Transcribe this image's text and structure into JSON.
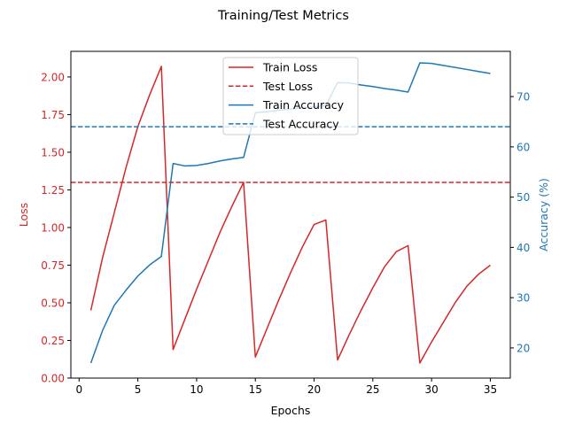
{
  "chart_data": {
    "type": "line",
    "title": "Training/Test Metrics",
    "xlabel": "Epochs",
    "ylabel_left": "Loss",
    "ylabel_right": "Accuracy (%)",
    "xlim": [
      -0.7,
      36.7
    ],
    "ylim_left": [
      0,
      2.17
    ],
    "ylim_right": [
      14.0,
      79.0
    ],
    "x_ticks": [
      0,
      5,
      10,
      15,
      20,
      25,
      30,
      35
    ],
    "x_tick_labels": [
      "0",
      "5",
      "10",
      "15",
      "20",
      "25",
      "30",
      "35"
    ],
    "y_left_ticks": [
      0,
      0.25,
      0.5,
      0.75,
      1.0,
      1.25,
      1.5,
      1.75,
      2.0
    ],
    "y_left_tick_labels": [
      "0.00",
      "0.25",
      "0.50",
      "0.75",
      "1.00",
      "1.25",
      "1.50",
      "1.75",
      "2.00"
    ],
    "y_right_ticks": [
      20,
      30,
      40,
      50,
      60,
      70
    ],
    "y_right_tick_labels": [
      "20",
      "30",
      "40",
      "50",
      "60",
      "70"
    ],
    "x": [
      1,
      2,
      3,
      4,
      5,
      6,
      7,
      8,
      9,
      10,
      11,
      12,
      13,
      14,
      15,
      16,
      17,
      18,
      19,
      20,
      21,
      22,
      23,
      24,
      25,
      26,
      27,
      28,
      29,
      30,
      31,
      32,
      33,
      34,
      35
    ],
    "series": [
      {
        "name": "Train Loss",
        "axis": "left",
        "color": "#d62728",
        "style": "solid",
        "values": [
          0.45,
          0.8,
          1.1,
          1.4,
          1.67,
          1.88,
          2.07,
          0.19,
          0.39,
          0.59,
          0.78,
          0.97,
          1.14,
          1.3,
          0.14,
          0.33,
          0.52,
          0.7,
          0.87,
          1.02,
          1.05,
          0.12,
          0.29,
          0.45,
          0.6,
          0.74,
          0.84,
          0.88,
          0.1,
          0.24,
          0.37,
          0.5,
          0.61,
          0.69,
          0.75
        ]
      },
      {
        "name": "Train Accuracy",
        "axis": "right",
        "color": "#1f77b4",
        "style": "solid",
        "values": [
          17.0,
          23.5,
          28.5,
          31.5,
          34.3,
          36.5,
          38.2,
          56.7,
          56.2,
          56.3,
          56.7,
          57.2,
          57.6,
          57.9,
          66.8,
          67.0,
          67.3,
          67.5,
          67.8,
          68.0,
          68.2,
          72.8,
          72.7,
          72.3,
          72.0,
          71.6,
          71.3,
          70.9,
          76.7,
          76.6,
          76.2,
          75.8,
          75.4,
          75.0,
          74.6
        ]
      }
    ],
    "reference_lines": [
      {
        "name": "Test Loss",
        "axis": "left",
        "value": 1.3,
        "color": "#d62728",
        "style": "dashed"
      },
      {
        "name": "Test Accuracy",
        "axis": "right",
        "value": 64.0,
        "color": "#1f77b4",
        "style": "dashed"
      }
    ],
    "legend": {
      "position": "upper-center",
      "entries": [
        {
          "label": "Train Loss",
          "color": "#d62728",
          "style": "solid"
        },
        {
          "label": "Test Loss",
          "color": "#d62728",
          "style": "dashed"
        },
        {
          "label": "Train Accuracy",
          "color": "#1f77b4",
          "style": "solid"
        },
        {
          "label": "Test Accuracy",
          "color": "#1f77b4",
          "style": "dashed"
        }
      ]
    },
    "left_axis_color": "#d62728",
    "right_axis_color": "#1f77b4",
    "grid": false
  }
}
